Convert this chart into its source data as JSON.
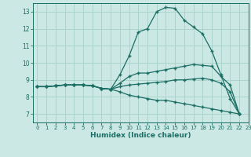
{
  "xlabel": "Humidex (Indice chaleur)",
  "bg_color": "#cce8e4",
  "grid_color": "#aad4cc",
  "line_color": "#1a6e64",
  "xlim": [
    -0.5,
    23
  ],
  "ylim": [
    6.5,
    13.5
  ],
  "xticks": [
    0,
    1,
    2,
    3,
    4,
    5,
    6,
    7,
    8,
    9,
    10,
    11,
    12,
    13,
    14,
    15,
    16,
    17,
    18,
    19,
    20,
    21,
    22,
    23
  ],
  "yticks": [
    7,
    8,
    9,
    10,
    11,
    12,
    13
  ],
  "series": [
    {
      "x": [
        0,
        1,
        2,
        3,
        4,
        5,
        6,
        7,
        8,
        9,
        10,
        11,
        12,
        13,
        14,
        15,
        16,
        17,
        18,
        19,
        20,
        21,
        22
      ],
      "y": [
        8.6,
        8.6,
        8.65,
        8.7,
        8.7,
        8.7,
        8.65,
        8.5,
        8.45,
        9.3,
        10.4,
        11.8,
        12.0,
        13.0,
        13.25,
        13.2,
        12.5,
        12.1,
        11.7,
        10.7,
        9.3,
        7.9,
        7.0
      ]
    },
    {
      "x": [
        0,
        1,
        2,
        3,
        4,
        5,
        6,
        7,
        8,
        9,
        10,
        11,
        12,
        13,
        14,
        15,
        16,
        17,
        18,
        19,
        20,
        21,
        22
      ],
      "y": [
        8.6,
        8.6,
        8.65,
        8.7,
        8.7,
        8.7,
        8.65,
        8.5,
        8.45,
        8.8,
        9.2,
        9.4,
        9.4,
        9.5,
        9.6,
        9.7,
        9.8,
        9.9,
        9.85,
        9.8,
        9.2,
        8.7,
        7.0
      ]
    },
    {
      "x": [
        0,
        1,
        2,
        3,
        4,
        5,
        6,
        7,
        8,
        9,
        10,
        11,
        12,
        13,
        14,
        15,
        16,
        17,
        18,
        19,
        20,
        21,
        22
      ],
      "y": [
        8.6,
        8.6,
        8.65,
        8.7,
        8.7,
        8.7,
        8.65,
        8.5,
        8.45,
        8.6,
        8.7,
        8.75,
        8.8,
        8.85,
        8.9,
        9.0,
        9.0,
        9.05,
        9.1,
        9.0,
        8.8,
        8.3,
        7.0
      ]
    },
    {
      "x": [
        0,
        1,
        2,
        3,
        4,
        5,
        6,
        7,
        8,
        9,
        10,
        11,
        12,
        13,
        14,
        15,
        16,
        17,
        18,
        19,
        20,
        21,
        22
      ],
      "y": [
        8.6,
        8.6,
        8.65,
        8.7,
        8.7,
        8.7,
        8.65,
        8.5,
        8.45,
        8.3,
        8.1,
        8.0,
        7.9,
        7.8,
        7.8,
        7.7,
        7.6,
        7.5,
        7.4,
        7.3,
        7.2,
        7.1,
        7.0
      ]
    }
  ]
}
